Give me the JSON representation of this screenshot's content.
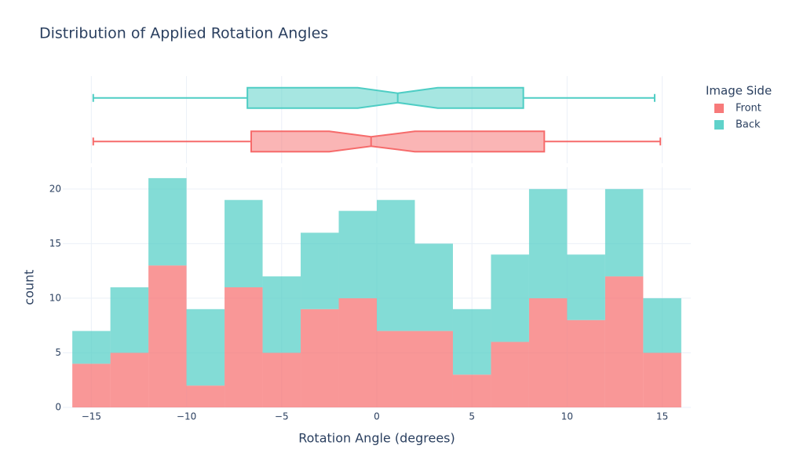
{
  "chart_data": {
    "type": "histogram",
    "title": "Distribution of Applied Rotation Angles",
    "x_label": "Rotation Angle (degrees)",
    "y_label": "count",
    "legend_title": "Image Side",
    "bins": [
      -16,
      -14,
      -12,
      -10,
      -8,
      -6,
      -4,
      -2,
      0,
      2,
      4,
      6,
      8,
      10,
      12,
      14,
      16
    ],
    "series": [
      {
        "name": "Front",
        "color": "#f66b6b",
        "values": [
          4,
          5,
          13,
          2,
          11,
          5,
          9,
          10,
          7,
          7,
          3,
          6,
          10,
          8,
          12,
          5
        ],
        "box": {
          "min": -14.9,
          "q1": -6.6,
          "notch_low": -2.5,
          "median": -0.3,
          "notch_high": 2.0,
          "q3": 8.8,
          "max": 14.9
        }
      },
      {
        "name": "Back",
        "color": "#4ecdc4",
        "values": [
          3,
          6,
          8,
          7,
          8,
          7,
          7,
          8,
          12,
          8,
          6,
          8,
          10,
          6,
          8,
          5
        ],
        "box": {
          "min": -14.9,
          "q1": -6.8,
          "notch_low": -1.0,
          "median": 1.1,
          "notch_high": 3.2,
          "q3": 7.7,
          "max": 14.6
        }
      }
    ],
    "stacked": true,
    "xlim": [
      -16.5,
      16.5
    ],
    "xticks": [
      {
        "value": -15,
        "label": "−15"
      },
      {
        "value": -10,
        "label": "−10"
      },
      {
        "value": -5,
        "label": "−5"
      },
      0,
      5,
      10,
      15
    ],
    "ylim": [
      0,
      22
    ],
    "yticks": [
      0,
      5,
      10,
      15,
      20
    ],
    "grid": true,
    "legend_position": "right"
  }
}
